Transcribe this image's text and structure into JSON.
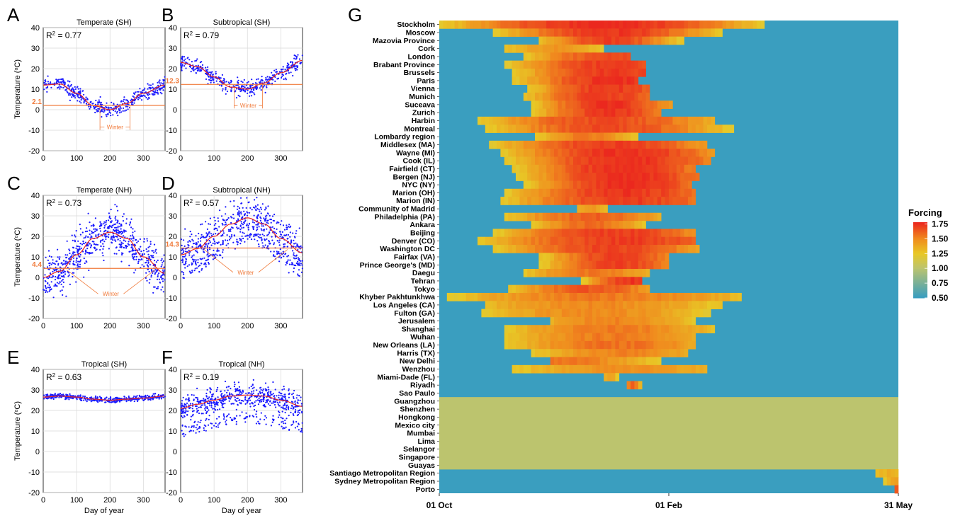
{
  "panels_left": {
    "ylabel": "Temperature (",
    "ylabel_sup": "o",
    "ylabel_tail": "C)",
    "xlabel": "Day of year",
    "xticks": [
      "0",
      "100",
      "200",
      "300"
    ],
    "winter_label": "Winter"
  },
  "chart_data": [
    {
      "panel": "A",
      "type": "scatter",
      "title": "Temperate (SH)",
      "r2_prefix": "R",
      "r2_value": " = 0.77",
      "ylim": [
        -20,
        40
      ],
      "yticks": [
        "40",
        "30",
        "20",
        "10",
        "0",
        "-10",
        "-20"
      ],
      "xlim": [
        0,
        365
      ],
      "threshold": 2.1,
      "threshold_label": "2.1",
      "winter_bracket": [
        170,
        260
      ],
      "curve": {
        "days": [
          0,
          50,
          100,
          150,
          200,
          250,
          300,
          365
        ],
        "temp": [
          12,
          12.5,
          8,
          2,
          0,
          3,
          8,
          12
        ]
      },
      "scatter_spread": 3
    },
    {
      "panel": "B",
      "type": "scatter",
      "title": "Subtropical (SH)",
      "r2_prefix": "R",
      "r2_value": " = 0.79",
      "ylim": [
        -20,
        40
      ],
      "yticks": [
        "40",
        "30",
        "20",
        "10",
        "0",
        "-10",
        "-20"
      ],
      "xlim": [
        0,
        365
      ],
      "threshold": 12.3,
      "threshold_label": "12.3",
      "winter_bracket": [
        160,
        245
      ],
      "curve": {
        "days": [
          0,
          50,
          100,
          150,
          200,
          250,
          300,
          365
        ],
        "temp": [
          23,
          21,
          16,
          11,
          10,
          13,
          18,
          24
        ]
      },
      "scatter_spread": 3
    },
    {
      "panel": "C",
      "type": "scatter",
      "title": "Temperate (NH)",
      "r2_prefix": "R",
      "r2_value": " = 0.73",
      "ylim": [
        -20,
        40
      ],
      "yticks": [
        "40",
        "30",
        "20",
        "10",
        "0",
        "-10",
        "-20"
      ],
      "xlim": [
        0,
        365
      ],
      "threshold": 4.4,
      "threshold_label": "4.4",
      "winter_bracket": [
        70,
        335
      ],
      "curve": {
        "days": [
          0,
          50,
          100,
          150,
          200,
          250,
          300,
          365
        ],
        "temp": [
          0,
          3,
          11,
          19,
          22,
          19,
          10,
          2
        ]
      },
      "scatter_spread": 8
    },
    {
      "panel": "D",
      "type": "scatter",
      "title": "Subtropical (NH)",
      "r2_prefix": "R",
      "r2_value": " = 0.57",
      "ylim": [
        -20,
        40
      ],
      "yticks": [
        "40",
        "30",
        "20",
        "10",
        "0",
        "-10",
        "-20"
      ],
      "xlim": [
        0,
        365
      ],
      "threshold": 14.3,
      "threshold_label": "14.3",
      "winter_bracket": [
        70,
        320
      ],
      "curve": {
        "days": [
          0,
          50,
          100,
          150,
          200,
          250,
          300,
          365
        ],
        "temp": [
          11,
          14,
          20,
          26,
          29,
          26,
          19,
          12
        ]
      },
      "scatter_spread": 8
    },
    {
      "panel": "E",
      "type": "scatter",
      "title": "Tropical (SH)",
      "r2_prefix": "R",
      "r2_value": " = 0.63",
      "ylim": [
        -20,
        40
      ],
      "yticks": [
        "40",
        "30",
        "20",
        "10",
        "0",
        "-10",
        "-20"
      ],
      "xlim": [
        0,
        365
      ],
      "threshold": null,
      "winter_bracket": null,
      "curve": {
        "days": [
          0,
          50,
          100,
          150,
          200,
          250,
          300,
          365
        ],
        "temp": [
          26.5,
          27,
          26.5,
          25.5,
          25,
          25.5,
          26,
          27
        ]
      },
      "scatter_spread": 1
    },
    {
      "panel": "F",
      "type": "scatter",
      "title": "Tropical (NH)",
      "r2_prefix": "R",
      "r2_value": " = 0.19",
      "ylim": [
        -20,
        40
      ],
      "yticks": [
        "40",
        "30",
        "20",
        "10",
        "0",
        "-10",
        "-20"
      ],
      "xlim": [
        0,
        365
      ],
      "threshold": null,
      "winter_bracket": null,
      "curve": {
        "days": [
          0,
          50,
          100,
          150,
          200,
          250,
          300,
          365
        ],
        "temp": [
          21,
          23,
          25,
          27,
          27.5,
          27,
          25,
          22
        ]
      },
      "scatter_spread": 5
    },
    {
      "panel": "G",
      "type": "heatmap",
      "x_ticks": [
        "01 Oct",
        "01 Feb",
        "31 May"
      ],
      "legend_title": "Forcing",
      "legend_ticks": [
        "1.75",
        "1.50",
        "1.25",
        "1.00",
        "0.75",
        "0.50"
      ],
      "rows": [
        {
          "name": "Stockholm",
          "range": [
            0.0,
            0.71
          ],
          "peak": 0.36,
          "hi": 1.78
        },
        {
          "name": "Moscow",
          "range": [
            0.12,
            0.62
          ],
          "peak": 0.37,
          "hi": 1.75
        },
        {
          "name": "Mazovia Province",
          "range": [
            0.22,
            0.53
          ],
          "peak": 0.37,
          "hi": 1.72
        },
        {
          "name": "Cork",
          "range": [
            0.14,
            0.36
          ],
          "peak": 0.25,
          "hi": 1.45
        },
        {
          "name": "London",
          "range": [
            0.18,
            0.42
          ],
          "peak": 0.39,
          "hi": 1.7
        },
        {
          "name": "Brabant Province",
          "range": [
            0.14,
            0.45
          ],
          "peak": 0.38,
          "hi": 1.72
        },
        {
          "name": "Brussels",
          "range": [
            0.16,
            0.45
          ],
          "peak": 0.38,
          "hi": 1.74
        },
        {
          "name": "Paris",
          "range": [
            0.16,
            0.43
          ],
          "peak": 0.38,
          "hi": 1.76
        },
        {
          "name": "Vienna",
          "range": [
            0.19,
            0.46
          ],
          "peak": 0.37,
          "hi": 1.74
        },
        {
          "name": "Munich",
          "range": [
            0.18,
            0.46
          ],
          "peak": 0.36,
          "hi": 1.73
        },
        {
          "name": "Suceava",
          "range": [
            0.2,
            0.51
          ],
          "peak": 0.37,
          "hi": 1.76
        },
        {
          "name": "Zurich",
          "range": [
            0.2,
            0.48
          ],
          "peak": 0.37,
          "hi": 1.74
        },
        {
          "name": "Harbin",
          "range": [
            0.08,
            0.6
          ],
          "peak": 0.36,
          "hi": 1.68
        },
        {
          "name": "Montreal",
          "range": [
            0.1,
            0.64
          ],
          "peak": 0.37,
          "hi": 1.68
        },
        {
          "name": "Lombardy region",
          "range": [
            0.21,
            0.43
          ],
          "peak": 0.32,
          "hi": 1.55
        },
        {
          "name": "Middlesex (MA)",
          "range": [
            0.11,
            0.58
          ],
          "peak": 0.38,
          "hi": 1.72
        },
        {
          "name": "Wayne (MI)",
          "range": [
            0.13,
            0.6
          ],
          "peak": 0.4,
          "hi": 1.76
        },
        {
          "name": "Cook (IL)",
          "range": [
            0.14,
            0.59
          ],
          "peak": 0.41,
          "hi": 1.76
        },
        {
          "name": "Fairfield (CT)",
          "range": [
            0.16,
            0.56
          ],
          "peak": 0.4,
          "hi": 1.77
        },
        {
          "name": "Bergen (NJ)",
          "range": [
            0.17,
            0.57
          ],
          "peak": 0.41,
          "hi": 1.77
        },
        {
          "name": "NYC (NY)",
          "range": [
            0.18,
            0.55
          ],
          "peak": 0.41,
          "hi": 1.77
        },
        {
          "name": "Marion (OH)",
          "range": [
            0.14,
            0.56
          ],
          "peak": 0.41,
          "hi": 1.74
        },
        {
          "name": "Marion (IN)",
          "range": [
            0.13,
            0.56
          ],
          "peak": 0.41,
          "hi": 1.72
        },
        {
          "name": "Community of Madrid",
          "range": [
            0.3,
            0.37
          ],
          "peak": 0.33,
          "hi": 1.45
        },
        {
          "name": "Philadelphia (PA)",
          "range": [
            0.14,
            0.48
          ],
          "peak": 0.33,
          "hi": 1.62
        },
        {
          "name": "Ankara",
          "range": [
            0.2,
            0.45
          ],
          "peak": 0.33,
          "hi": 1.6
        },
        {
          "name": "Beijing",
          "range": [
            0.12,
            0.56
          ],
          "peak": 0.38,
          "hi": 1.72
        },
        {
          "name": "Denver (CO)",
          "range": [
            0.08,
            0.56
          ],
          "peak": 0.4,
          "hi": 1.72
        },
        {
          "name": "Washington DC",
          "range": [
            0.12,
            0.57
          ],
          "peak": 0.37,
          "hi": 1.7
        },
        {
          "name": "Fairfax (VA)",
          "range": [
            0.22,
            0.5
          ],
          "peak": 0.39,
          "hi": 1.72
        },
        {
          "name": "Prince George's (MD)",
          "range": [
            0.22,
            0.5
          ],
          "peak": 0.39,
          "hi": 1.72
        },
        {
          "name": "Daegu",
          "range": [
            0.18,
            0.46
          ],
          "peak": 0.33,
          "hi": 1.55
        },
        {
          "name": "Tehran",
          "range": [
            0.31,
            0.44
          ],
          "peak": 0.42,
          "hi": 1.75
        },
        {
          "name": "Tokyo",
          "range": [
            0.15,
            0.46
          ],
          "peak": 0.33,
          "hi": 1.65
        },
        {
          "name": "Khyber Pakhtunkhwa",
          "range": [
            0.02,
            0.66
          ],
          "peak": 0.36,
          "hi": 1.55
        },
        {
          "name": "Los Angeles (CA)",
          "range": [
            0.1,
            0.62
          ],
          "peak": 0.34,
          "hi": 1.5
        },
        {
          "name": "Fulton (GA)",
          "range": [
            0.09,
            0.59
          ],
          "peak": 0.34,
          "hi": 1.5
        },
        {
          "name": "Jerusalem",
          "range": [
            0.24,
            0.56
          ],
          "peak": 0.38,
          "hi": 1.52
        },
        {
          "name": "Shanghai",
          "range": [
            0.14,
            0.6
          ],
          "peak": 0.38,
          "hi": 1.55
        },
        {
          "name": "Wuhan",
          "range": [
            0.14,
            0.56
          ],
          "peak": 0.38,
          "hi": 1.55
        },
        {
          "name": "New Orleans (LA)",
          "range": [
            0.14,
            0.56
          ],
          "peak": 0.38,
          "hi": 1.58
        },
        {
          "name": "Harris (TX)",
          "range": [
            0.2,
            0.54
          ],
          "peak": 0.4,
          "hi": 1.52
        },
        {
          "name": "New Delhi",
          "range": [
            0.24,
            0.48
          ],
          "peak": 0.27,
          "hi": 1.55
        },
        {
          "name": "Wenzhou",
          "range": [
            0.16,
            0.58
          ],
          "peak": 0.4,
          "hi": 1.48
        },
        {
          "name": "Miami-Dade (FL)",
          "range": [
            0.36,
            0.39
          ],
          "peak": 0.37,
          "hi": 1.4
        },
        {
          "name": "Riyadh",
          "range": [
            0.41,
            0.44
          ],
          "peak": 0.42,
          "hi": 1.6
        },
        {
          "name": "Sao Paulo",
          "range": null
        },
        {
          "name": "Guangzhou",
          "uniform": 1.0
        },
        {
          "name": "Shenzhen",
          "uniform": 1.0
        },
        {
          "name": "Hongkong",
          "uniform": 1.0
        },
        {
          "name": "Mexico city",
          "uniform": 1.0
        },
        {
          "name": "Mumbai",
          "uniform": 1.0
        },
        {
          "name": "Lima",
          "uniform": 1.0
        },
        {
          "name": "Selangor",
          "uniform": 1.0
        },
        {
          "name": "Singapore",
          "uniform": 1.0
        },
        {
          "name": "Guayas",
          "uniform": 1.0
        },
        {
          "name": "Santiago Metropolitan Region",
          "range": [
            0.95,
            1.0
          ],
          "peak": 0.99,
          "hi": 1.35
        },
        {
          "name": "Sydney Metropolitan Region",
          "range": [
            0.97,
            1.0
          ],
          "peak": 0.995,
          "hi": 1.45
        },
        {
          "name": "Porto",
          "range": [
            0.99,
            1.0
          ],
          "peak": 0.999,
          "hi": 1.7
        }
      ]
    }
  ]
}
